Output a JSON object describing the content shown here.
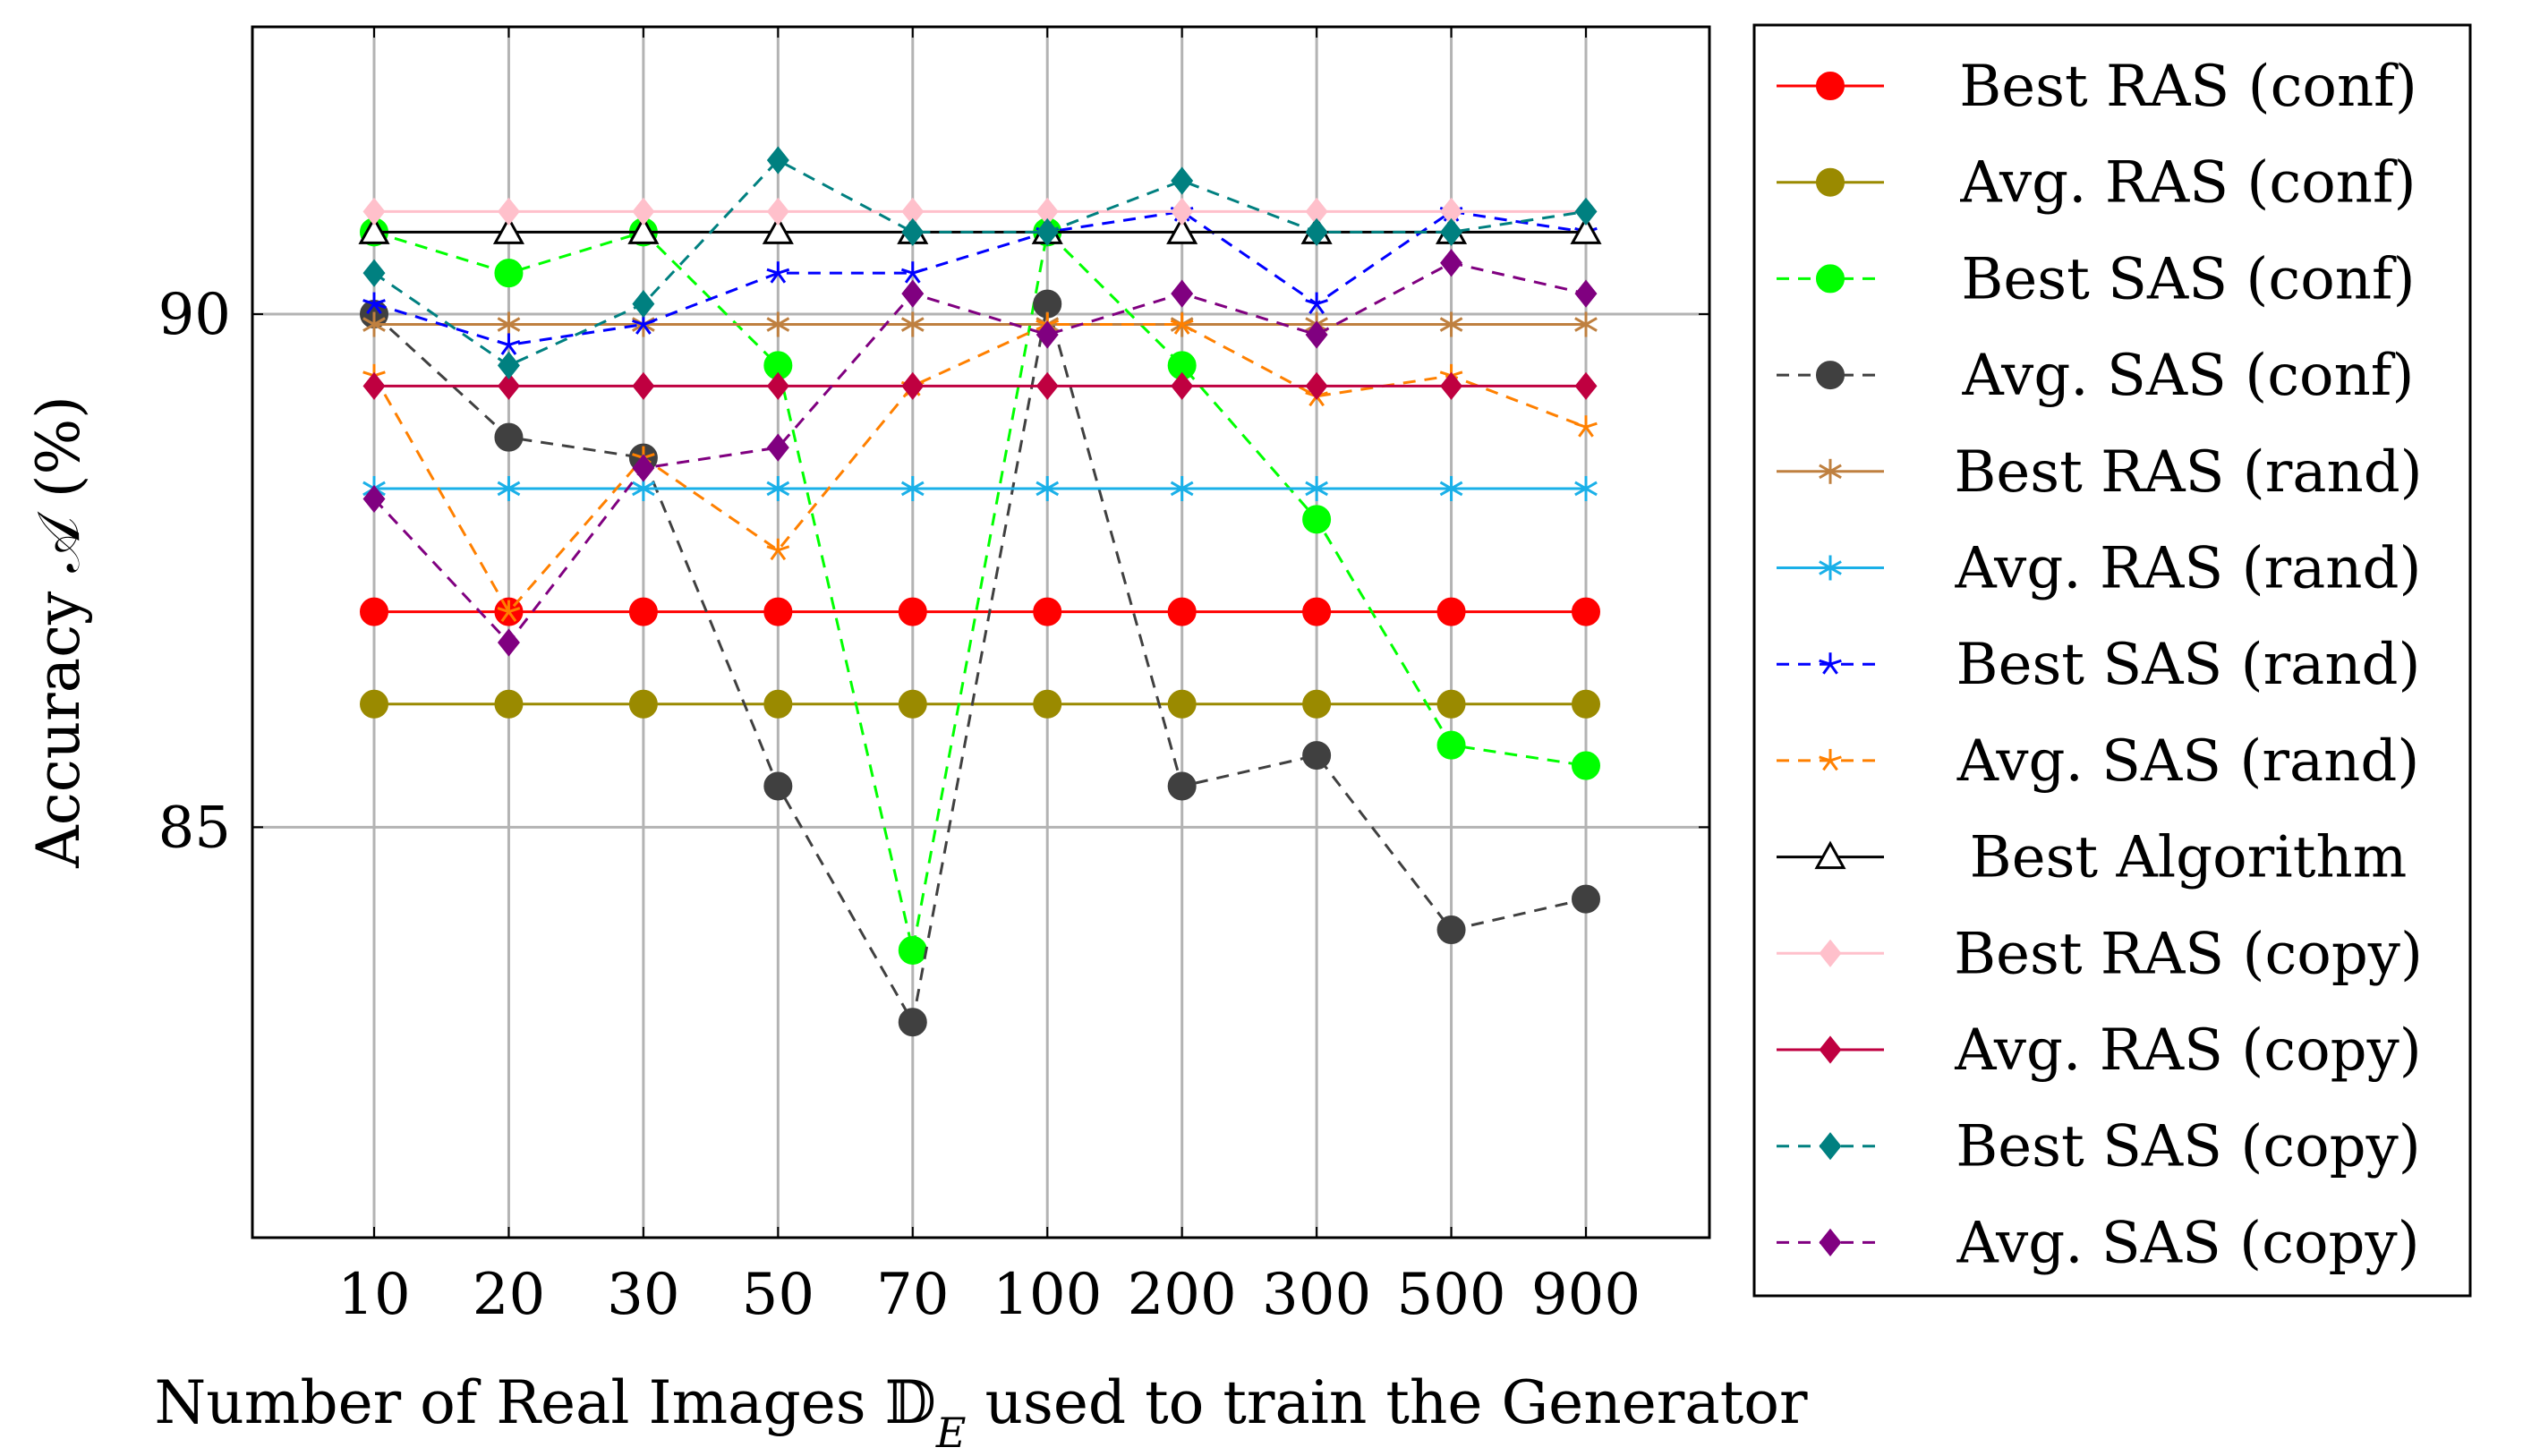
{
  "chart_data": {
    "type": "line",
    "title": "",
    "xlabel": "Number of Real Images 𝔻",
    "xlabel_sub": "E",
    "xlabel_rest": " used to train the Generator",
    "ylabel": "Accuracy 𝒜 (%)",
    "ylim": [
      81,
      92.8
    ],
    "yticks": [
      85,
      90
    ],
    "grid": true,
    "legend_position": "right-outside",
    "categories": [
      "10",
      "20",
      "30",
      "50",
      "70",
      "100",
      "200",
      "300",
      "500",
      "900"
    ],
    "series": [
      {
        "name": "Best RAS (conf)",
        "color": "#ff0000",
        "dash": false,
        "marker": "circle",
        "values": [
          87.1,
          87.1,
          87.1,
          87.1,
          87.1,
          87.1,
          87.1,
          87.1,
          87.1,
          87.1
        ]
      },
      {
        "name": "Avg. RAS (conf)",
        "color": "#9a8a00",
        "dash": false,
        "marker": "circle",
        "values": [
          86.2,
          86.2,
          86.2,
          86.2,
          86.2,
          86.2,
          86.2,
          86.2,
          86.2,
          86.2
        ]
      },
      {
        "name": "Best SAS (conf)",
        "color": "#00ff00",
        "dash": true,
        "marker": "circle",
        "values": [
          90.8,
          90.4,
          90.8,
          89.5,
          83.8,
          90.8,
          89.5,
          88.0,
          85.8,
          85.6
        ]
      },
      {
        "name": "Avg. SAS (conf)",
        "color": "#404040",
        "dash": true,
        "marker": "circle",
        "values": [
          90.0,
          88.8,
          88.6,
          85.4,
          83.1,
          90.1,
          85.4,
          85.7,
          84.0,
          84.3
        ]
      },
      {
        "name": "Best RAS (rand)",
        "color": "#bf8040",
        "dash": false,
        "marker": "asterisk",
        "values": [
          89.9,
          89.9,
          89.9,
          89.9,
          89.9,
          89.9,
          89.9,
          89.9,
          89.9,
          89.9
        ]
      },
      {
        "name": "Avg. RAS (rand)",
        "color": "#1ab0e8",
        "dash": false,
        "marker": "asterisk",
        "values": [
          88.3,
          88.3,
          88.3,
          88.3,
          88.3,
          88.3,
          88.3,
          88.3,
          88.3,
          88.3
        ]
      },
      {
        "name": "Best SAS (rand)",
        "color": "#0000ff",
        "dash": true,
        "marker": "star",
        "values": [
          90.1,
          89.7,
          89.9,
          90.4,
          90.4,
          90.8,
          91.0,
          90.1,
          91.0,
          90.8
        ]
      },
      {
        "name": "Avg. SAS (rand)",
        "color": "#ff8000",
        "dash": true,
        "marker": "star",
        "values": [
          89.4,
          87.1,
          88.6,
          87.7,
          89.3,
          89.9,
          89.9,
          89.2,
          89.4,
          88.9
        ]
      },
      {
        "name": "Best Algorithm",
        "color": "#000000",
        "dash": false,
        "marker": "triangle",
        "values": [
          90.8,
          90.8,
          90.8,
          90.8,
          90.8,
          90.8,
          90.8,
          90.8,
          90.8,
          90.8
        ]
      },
      {
        "name": "Best RAS (copy)",
        "color": "#ffc0cb",
        "dash": false,
        "marker": "diamond",
        "values": [
          91.0,
          91.0,
          91.0,
          91.0,
          91.0,
          91.0,
          91.0,
          91.0,
          91.0,
          91.0
        ]
      },
      {
        "name": "Avg. RAS (copy)",
        "color": "#bf0040",
        "dash": false,
        "marker": "diamond",
        "values": [
          89.3,
          89.3,
          89.3,
          89.3,
          89.3,
          89.3,
          89.3,
          89.3,
          89.3,
          89.3
        ]
      },
      {
        "name": "Best SAS (copy)",
        "color": "#008080",
        "dash": true,
        "marker": "diamond",
        "values": [
          90.4,
          89.5,
          90.1,
          91.5,
          90.8,
          90.8,
          91.3,
          90.8,
          90.8,
          91.0
        ]
      },
      {
        "name": "Avg. SAS (copy)",
        "color": "#800080",
        "dash": true,
        "marker": "diamond",
        "values": [
          88.2,
          86.8,
          88.5,
          88.7,
          90.2,
          89.8,
          90.2,
          89.8,
          90.5,
          90.2
        ]
      }
    ]
  }
}
